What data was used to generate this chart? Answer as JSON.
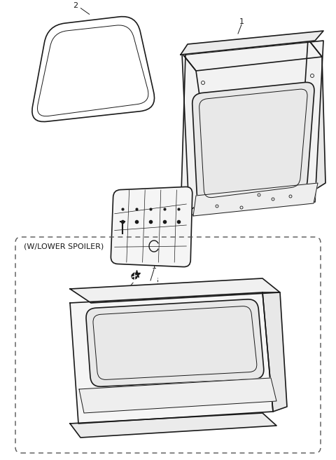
{
  "background_color": "#ffffff",
  "fig_width": 4.8,
  "fig_height": 6.56,
  "dpi": 100,
  "lc": "#1a1a1a",
  "label_fontsize": 8,
  "spoiler_box_label": "(W/LOWER SPOILER)"
}
